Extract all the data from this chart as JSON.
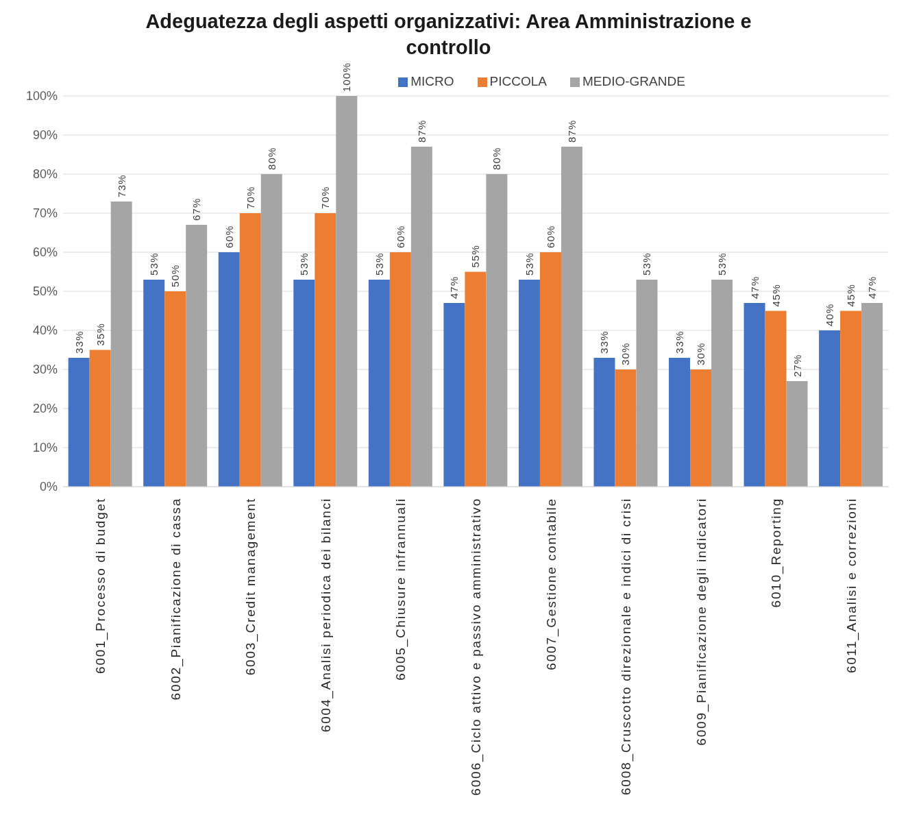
{
  "chart_data": {
    "type": "bar",
    "title": "Adeguatezza degli aspetti organizzativi: Area Amministrazione e controllo",
    "categories": [
      "6001_Processo di budget",
      "6002_Pianificazione di cassa",
      "6003_Credit management",
      "6004_Analisi periodica dei bilanci",
      "6005_Chiusure infrannuali",
      "6006_Ciclo attivo e passivo amministrativo",
      "6007_Gestione contabile",
      "6008_Cruscotto direzionale e indici di crisi",
      "6009_Pianificazione degli indicatori",
      "6010_Reporting",
      "6011_Analisi e correzioni"
    ],
    "series": [
      {
        "name": "MICRO",
        "color": "#4472c4",
        "values": [
          33,
          53,
          60,
          53,
          53,
          47,
          53,
          33,
          33,
          47,
          40
        ],
        "value_labels": [
          "33%",
          "53%",
          "60%",
          "53%",
          "53%",
          "47%",
          "53%",
          "33%",
          "33%",
          "47%",
          "40%"
        ]
      },
      {
        "name": "PICCOLA",
        "color": "#ed7d31",
        "values": [
          35,
          50,
          70,
          70,
          60,
          55,
          60,
          30,
          30,
          45,
          45
        ],
        "value_labels": [
          "35%",
          "50%",
          "70%",
          "70%",
          "60%",
          "55%",
          "60%",
          "30%",
          "30%",
          "45%",
          "45%"
        ]
      },
      {
        "name": "MEDIO-GRANDE",
        "color": "#a5a5a5",
        "values": [
          73,
          67,
          80,
          100,
          87,
          80,
          87,
          53,
          53,
          27,
          47
        ],
        "value_labels": [
          "73%",
          "67%",
          "80%",
          "100%",
          "87%",
          "80%",
          "87%",
          "53%",
          "53%",
          "27%",
          "47%"
        ]
      }
    ],
    "ylim": [
      0,
      100
    ],
    "yticks": [
      {
        "value": 0,
        "label": "0%"
      },
      {
        "value": 10,
        "label": "10%"
      },
      {
        "value": 20,
        "label": "20%"
      },
      {
        "value": 30,
        "label": "30%"
      },
      {
        "value": 40,
        "label": "40%"
      },
      {
        "value": 50,
        "label": "50%"
      },
      {
        "value": 60,
        "label": "60%"
      },
      {
        "value": 70,
        "label": "70%"
      },
      {
        "value": 80,
        "label": "80%"
      },
      {
        "value": 90,
        "label": "90%"
      },
      {
        "value": 100,
        "label": "100%"
      }
    ],
    "grid": "y",
    "legend": "top"
  }
}
